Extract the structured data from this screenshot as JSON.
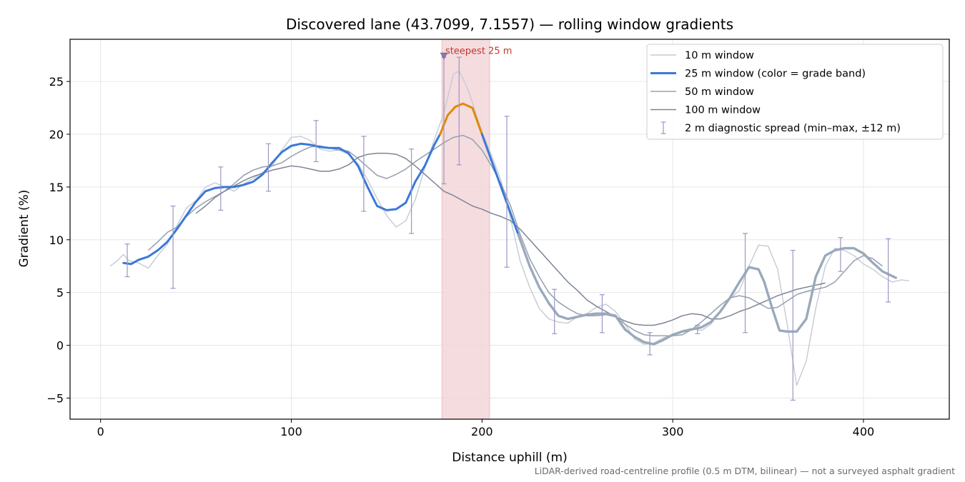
{
  "chart_data": {
    "type": "line",
    "title": "Discovered lane (43.7099, 7.1557) — rolling window gradients",
    "xlabel": "Distance uphill (m)",
    "ylabel": "Gradient (%)",
    "xlim": [
      -16,
      445
    ],
    "ylim": [
      -7,
      29
    ],
    "xticks": [
      0,
      100,
      200,
      300,
      400
    ],
    "yticks": [
      -5,
      0,
      5,
      10,
      15,
      20,
      25
    ],
    "grid": true,
    "legend_position": "top-right",
    "footnote": "LiDAR-derived road-centreline profile (0.5 m DTM, bilinear) — not a surveyed asphalt gradient",
    "colors": {
      "w10": "#c5cad3",
      "w25_blue": "#3b78d8",
      "w25_orange": "#e08a00",
      "w25_grey": "#9aa9bb",
      "w50": "#9aa3b2",
      "w100": "#7d8594",
      "errbar": "#9c96c4",
      "highlight": "#f4d7da",
      "annotation": "#c0392b",
      "marker": "#6f6a9e"
    },
    "series": [
      {
        "name": "10 m window",
        "x": [
          5,
          8,
          12,
          15,
          20,
          25,
          30,
          35,
          40,
          45,
          50,
          55,
          60,
          65,
          70,
          75,
          80,
          85,
          90,
          95,
          100,
          105,
          110,
          115,
          120,
          125,
          130,
          135,
          140,
          145,
          150,
          155,
          160,
          165,
          170,
          175,
          180,
          185,
          188,
          192,
          195,
          200,
          205,
          210,
          215,
          220,
          225,
          230,
          235,
          240,
          245,
          250,
          255,
          260,
          265,
          270,
          275,
          280,
          285,
          290,
          295,
          300,
          305,
          310,
          315,
          320,
          325,
          330,
          335,
          340,
          345,
          350,
          355,
          360,
          365,
          370,
          375,
          380,
          385,
          390,
          395,
          400,
          405,
          410,
          415,
          420,
          424
        ],
        "values": [
          7.5,
          7.9,
          8.6,
          8.0,
          7.8,
          7.3,
          8.5,
          9.6,
          11.3,
          13.0,
          13.7,
          15.0,
          15.4,
          15.0,
          14.6,
          15.3,
          15.8,
          16.4,
          17.0,
          18.5,
          19.7,
          19.8,
          19.4,
          18.6,
          18.4,
          18.5,
          18.1,
          17.2,
          15.7,
          13.9,
          12.3,
          11.2,
          11.8,
          13.8,
          16.8,
          19.5,
          22.0,
          25.7,
          26.0,
          24.5,
          23.0,
          20.2,
          18.0,
          15.6,
          12.0,
          8.0,
          5.5,
          3.5,
          2.5,
          2.2,
          2.1,
          2.7,
          3.0,
          3.6,
          3.9,
          3.2,
          2.0,
          0.6,
          0.1,
          0.2,
          0.7,
          1.0,
          1.4,
          1.6,
          1.4,
          2.0,
          3.2,
          4.4,
          5.2,
          7.5,
          9.5,
          9.4,
          7.2,
          2.0,
          -3.8,
          -1.5,
          3.5,
          7.5,
          9.2,
          9.0,
          8.5,
          7.7,
          7.2,
          6.5,
          6.0,
          6.2,
          6.1
        ]
      },
      {
        "name": "25 m window (color = grade band)",
        "x": [
          12,
          16,
          20,
          25,
          30,
          35,
          40,
          45,
          50,
          55,
          60,
          65,
          70,
          75,
          80,
          85,
          90,
          95,
          100,
          105,
          110,
          115,
          120,
          125,
          130,
          135,
          140,
          145,
          150,
          155,
          160,
          165,
          170,
          175,
          178,
          182,
          186,
          190,
          195,
          200,
          205,
          210,
          215,
          219,
          225,
          230,
          235,
          240,
          245,
          250,
          255,
          260,
          265,
          270,
          275,
          280,
          285,
          290,
          295,
          300,
          305,
          310,
          315,
          320,
          325,
          330,
          335,
          340,
          345,
          348,
          352,
          356,
          360,
          365,
          370,
          375,
          380,
          385,
          390,
          395,
          400,
          405,
          410,
          417
        ],
        "values": [
          7.8,
          7.7,
          8.1,
          8.4,
          9.0,
          9.8,
          11.0,
          12.3,
          13.6,
          14.6,
          14.9,
          15.0,
          15.0,
          15.2,
          15.5,
          16.2,
          17.3,
          18.3,
          18.9,
          19.1,
          19.0,
          18.8,
          18.7,
          18.7,
          18.2,
          17.0,
          15.0,
          13.2,
          12.8,
          12.9,
          13.5,
          15.5,
          17.0,
          19.0,
          20.0,
          21.8,
          22.6,
          22.9,
          22.5,
          20.0,
          17.5,
          15.0,
          12.5,
          10.5,
          7.5,
          5.5,
          4.0,
          2.8,
          2.5,
          2.7,
          2.9,
          3.0,
          3.0,
          2.8,
          1.5,
          0.8,
          0.3,
          0.1,
          0.5,
          1.0,
          1.3,
          1.5,
          1.7,
          2.2,
          3.2,
          4.5,
          6.0,
          7.4,
          7.2,
          6.0,
          3.6,
          1.4,
          1.3,
          1.3,
          2.5,
          6.5,
          8.5,
          9.0,
          9.2,
          9.2,
          8.7,
          7.8,
          7.0,
          6.4
        ],
        "bands": [
          {
            "from": 12,
            "to": 178,
            "color": "w25_blue"
          },
          {
            "from": 178,
            "to": 200,
            "color": "w25_orange"
          },
          {
            "from": 200,
            "to": 219,
            "color": "w25_blue"
          },
          {
            "from": 219,
            "to": 417,
            "color": "w25_grey"
          }
        ]
      },
      {
        "name": "50 m window",
        "x": [
          25,
          30,
          35,
          40,
          45,
          50,
          55,
          60,
          65,
          70,
          75,
          80,
          85,
          90,
          95,
          100,
          105,
          110,
          115,
          120,
          125,
          130,
          135,
          140,
          145,
          150,
          155,
          160,
          165,
          170,
          175,
          180,
          185,
          190,
          195,
          200,
          205,
          210,
          215,
          220,
          225,
          230,
          235,
          240,
          245,
          250,
          255,
          260,
          265,
          270,
          275,
          280,
          285,
          290,
          295,
          300,
          305,
          310,
          315,
          320,
          325,
          330,
          335,
          340,
          345,
          350,
          355,
          360,
          365,
          370,
          375,
          380,
          385,
          390,
          395,
          400,
          405,
          410
        ],
        "values": [
          9.0,
          9.8,
          10.7,
          11.2,
          12.2,
          13.0,
          13.6,
          14.1,
          14.6,
          15.3,
          16.1,
          16.6,
          16.9,
          17.0,
          17.3,
          17.9,
          18.4,
          18.8,
          18.9,
          18.7,
          18.5,
          18.4,
          17.7,
          16.9,
          16.1,
          15.8,
          16.2,
          16.7,
          17.4,
          18.0,
          18.6,
          19.2,
          19.7,
          19.9,
          19.5,
          18.5,
          17.0,
          15.3,
          13.2,
          10.5,
          8.2,
          6.5,
          5.0,
          4.1,
          3.5,
          3.0,
          2.8,
          2.8,
          2.9,
          2.7,
          2.0,
          1.4,
          1.0,
          0.9,
          0.9,
          0.9,
          1.0,
          1.5,
          2.2,
          3.0,
          3.8,
          4.5,
          4.7,
          4.5,
          4.0,
          3.5,
          3.6,
          4.2,
          4.8,
          5.1,
          5.3,
          5.5,
          6.0,
          7.0,
          8.0,
          8.5,
          8.2,
          7.5
        ]
      },
      {
        "name": "100 m window",
        "x": [
          50,
          55,
          60,
          65,
          70,
          75,
          80,
          85,
          90,
          95,
          100,
          105,
          110,
          115,
          120,
          125,
          130,
          135,
          140,
          145,
          150,
          155,
          160,
          165,
          170,
          175,
          180,
          185,
          190,
          195,
          200,
          205,
          210,
          215,
          220,
          225,
          230,
          235,
          240,
          245,
          250,
          255,
          260,
          265,
          270,
          275,
          280,
          285,
          290,
          295,
          300,
          305,
          310,
          315,
          320,
          325,
          330,
          335,
          340,
          345,
          350,
          355,
          360,
          365,
          370,
          375,
          380
        ],
        "values": [
          12.5,
          13.2,
          14.0,
          14.6,
          15.1,
          15.6,
          16.0,
          16.3,
          16.6,
          16.8,
          17.0,
          16.9,
          16.7,
          16.5,
          16.5,
          16.7,
          17.1,
          17.8,
          18.1,
          18.2,
          18.2,
          18.1,
          17.7,
          17.0,
          16.2,
          15.4,
          14.6,
          14.2,
          13.7,
          13.2,
          12.9,
          12.5,
          12.2,
          11.8,
          11.0,
          10.0,
          9.0,
          8.0,
          7.0,
          6.0,
          5.2,
          4.3,
          3.7,
          3.2,
          2.7,
          2.3,
          2.0,
          1.9,
          1.9,
          2.1,
          2.4,
          2.8,
          3.0,
          2.9,
          2.5,
          2.5,
          2.8,
          3.2,
          3.5,
          3.9,
          4.3,
          4.7,
          5.0,
          5.3,
          5.5,
          5.7,
          5.9
        ]
      }
    ],
    "error_bars": {
      "name": "2 m diagnostic spread (min–max, ±12 m)",
      "points": [
        {
          "x": 14,
          "min": 6.5,
          "max": 9.6
        },
        {
          "x": 38,
          "min": 5.4,
          "max": 13.2
        },
        {
          "x": 63,
          "min": 12.8,
          "max": 16.9
        },
        {
          "x": 88,
          "min": 14.6,
          "max": 19.1
        },
        {
          "x": 113,
          "min": 17.4,
          "max": 21.3
        },
        {
          "x": 138,
          "min": 12.7,
          "max": 19.8
        },
        {
          "x": 163,
          "min": 10.6,
          "max": 18.6
        },
        {
          "x": 180,
          "min": 15.3,
          "max": 27.3
        },
        {
          "x": 188,
          "min": 17.1,
          "max": 27.3
        },
        {
          "x": 213,
          "min": 7.4,
          "max": 21.7
        },
        {
          "x": 238,
          "min": 1.1,
          "max": 5.3
        },
        {
          "x": 263,
          "min": 1.2,
          "max": 4.8
        },
        {
          "x": 288,
          "min": -0.9,
          "max": 1.2
        },
        {
          "x": 313,
          "min": 1.1,
          "max": 1.9
        },
        {
          "x": 338,
          "min": 1.2,
          "max": 10.6
        },
        {
          "x": 363,
          "min": -5.2,
          "max": 9.0
        },
        {
          "x": 388,
          "min": 7.0,
          "max": 10.2
        },
        {
          "x": 413,
          "min": 4.1,
          "max": 10.1
        }
      ]
    },
    "highlight": {
      "x_from": 179,
      "x_to": 204
    },
    "annotation": {
      "text": "steepest 25 m",
      "x": 180,
      "y": 27.4
    }
  }
}
